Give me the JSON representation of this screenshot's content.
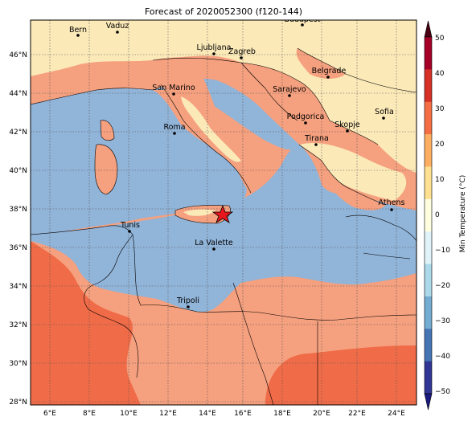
{
  "title": "Forecast of 2020052300 (f120-144)",
  "colorbar": {
    "label": "Min Temperature (°C)",
    "ticks": [
      "50",
      "40",
      "30",
      "20",
      "10",
      "0",
      "−10",
      "−20",
      "−30",
      "−40",
      "−50"
    ],
    "colors": [
      "#4a0010",
      "#a50026",
      "#d73027",
      "#f46d43",
      "#fdae61",
      "#fee090",
      "#ffffe0",
      "#e0f3f8",
      "#abd9e9",
      "#74add1",
      "#4575b4",
      "#313695",
      "#1a1a80"
    ]
  },
  "axes": {
    "x_ticks": [
      "6°E",
      "8°E",
      "10°E",
      "12°E",
      "14°E",
      "16°E",
      "18°E",
      "20°E",
      "22°E",
      "24°E"
    ],
    "y_ticks": [
      "46°N",
      "44°N",
      "42°N",
      "40°N",
      "38°N",
      "36°N",
      "34°N",
      "32°N",
      "30°N",
      "28°N"
    ]
  },
  "cities": [
    {
      "name": "Bern"
    },
    {
      "name": "Vaduz"
    },
    {
      "name": "Budapest"
    },
    {
      "name": "Ljubljana"
    },
    {
      "name": "Zagreb"
    },
    {
      "name": "Belgrade"
    },
    {
      "name": "San Marino"
    },
    {
      "name": "Sarajevo"
    },
    {
      "name": "Sofia"
    },
    {
      "name": "Roma"
    },
    {
      "name": "Podgorica"
    },
    {
      "name": "Skopje"
    },
    {
      "name": "Tirana"
    },
    {
      "name": "Athens"
    },
    {
      "name": "Tunis"
    },
    {
      "name": "La Valette"
    },
    {
      "name": "Tripoli"
    }
  ],
  "colors": {
    "sea": "#91b4d9",
    "warm_land": "#fbe9b8",
    "orange": "#f5a07e",
    "dark_orange": "#f06b47",
    "frame": "#000000"
  }
}
